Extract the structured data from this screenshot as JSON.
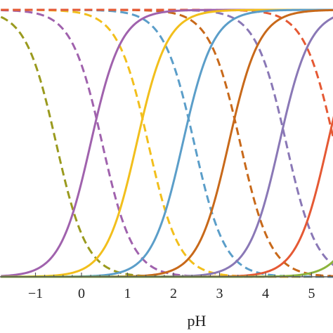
{
  "chart_data": {
    "type": "line",
    "title": "",
    "xlabel": "pH",
    "ylabel": "",
    "xlim": [
      -1.75,
      5.5
    ],
    "ylim": [
      0,
      1
    ],
    "x_ticks": [
      -1,
      0,
      1,
      2,
      3,
      4,
      5
    ],
    "x_tick_labels": [
      "−1",
      "0",
      "1",
      "2",
      "3",
      "4",
      "5"
    ],
    "grid": false,
    "legend": "none",
    "axis_color": "#555555",
    "colors": {
      "olive": "#9a9a1e",
      "purple": "#a062ad",
      "gold": "#f2bf1c",
      "blue": "#5b9ec9",
      "brown": "#c8691a",
      "lavender": "#8a78b6",
      "red": "#e55934",
      "green": "#8cb43c"
    },
    "sigmoid_series": [
      {
        "color_key": "purple",
        "midpoint": 0.2,
        "direction": "increasing"
      },
      {
        "color_key": "gold",
        "midpoint": 1.2,
        "direction": "increasing"
      },
      {
        "color_key": "blue",
        "midpoint": 2.2,
        "direction": "increasing"
      },
      {
        "color_key": "brown",
        "midpoint": 3.2,
        "direction": "increasing"
      },
      {
        "color_key": "lavender",
        "midpoint": 4.3,
        "direction": "increasing"
      },
      {
        "color_key": "red",
        "midpoint": 5.35,
        "direction": "increasing"
      },
      {
        "color_key": "green",
        "midpoint": 6.4,
        "direction": "increasing"
      }
    ],
    "dashed_series": [
      {
        "color_key": "olive",
        "midpoint": -0.55,
        "direction": "decreasing"
      },
      {
        "color_key": "purple",
        "midpoint": 0.45,
        "direction": "decreasing"
      },
      {
        "color_key": "gold",
        "midpoint": 1.45,
        "direction": "decreasing"
      },
      {
        "color_key": "blue",
        "midpoint": 2.45,
        "direction": "decreasing"
      },
      {
        "color_key": "brown",
        "midpoint": 3.45,
        "direction": "decreasing"
      },
      {
        "color_key": "lavender",
        "midpoint": 4.45,
        "direction": "decreasing"
      },
      {
        "color_key": "red",
        "midpoint": 5.5,
        "direction": "decreasing"
      }
    ]
  }
}
